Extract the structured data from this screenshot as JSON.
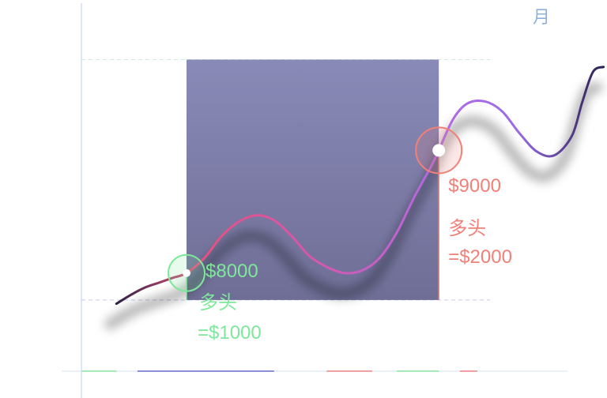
{
  "period_label": "月",
  "chart_data": {
    "type": "line",
    "title": "",
    "xlabel": "",
    "ylabel": "",
    "grid": false,
    "legend": "none",
    "series": [
      {
        "points": [
          {
            "x": 0.0,
            "y": 7750
          },
          {
            "x": 0.4,
            "y": 7820
          },
          {
            "x": 0.8,
            "y": 7880
          },
          {
            "x": 1.2,
            "y": 7920
          },
          {
            "x": 1.6,
            "y": 7960
          },
          {
            "x": 2.0,
            "y": 8000
          },
          {
            "x": 2.5,
            "y": 8120
          },
          {
            "x": 3.0,
            "y": 8300
          },
          {
            "x": 3.5,
            "y": 8420
          },
          {
            "x": 4.0,
            "y": 8470
          },
          {
            "x": 4.5,
            "y": 8430
          },
          {
            "x": 5.0,
            "y": 8300
          },
          {
            "x": 5.5,
            "y": 8140
          },
          {
            "x": 6.0,
            "y": 8050
          },
          {
            "x": 6.5,
            "y": 8000
          },
          {
            "x": 7.0,
            "y": 8020
          },
          {
            "x": 7.5,
            "y": 8120
          },
          {
            "x": 8.0,
            "y": 8330
          },
          {
            "x": 8.5,
            "y": 8620
          },
          {
            "x": 9.0,
            "y": 8880
          },
          {
            "x": 9.2,
            "y": 9000
          },
          {
            "x": 9.6,
            "y": 9250
          },
          {
            "x": 10.0,
            "y": 9380
          },
          {
            "x": 10.5,
            "y": 9400
          },
          {
            "x": 11.0,
            "y": 9320
          },
          {
            "x": 11.5,
            "y": 9140
          },
          {
            "x": 12.0,
            "y": 8990
          },
          {
            "x": 12.5,
            "y": 8960
          },
          {
            "x": 13.0,
            "y": 9120
          },
          {
            "x": 13.3,
            "y": 9400
          },
          {
            "x": 13.6,
            "y": 9640
          },
          {
            "x": 13.9,
            "y": 9680
          }
        ],
        "gradient_colors": [
          "#2a2042",
          "#e8507a",
          "#d15ab5",
          "#b06ae6",
          "#9b6be8",
          "#2a2050"
        ]
      }
    ],
    "xlim": [
      -1.0,
      14.0
    ],
    "ylim": [
      7200,
      10200
    ],
    "shaded_region": {
      "x_start": 2.0,
      "x_end": 9.2,
      "y_low": 7780,
      "y_high": 9740,
      "color_top": "#8a8ab8",
      "color_bottom": "#6e6e96"
    },
    "markers": [
      {
        "x": 2.0,
        "y": 8000,
        "price_label": "$8000",
        "type_label": "多头",
        "amount_label": "=$1000",
        "color": "#7ee89a"
      },
      {
        "x": 9.2,
        "y": 9000,
        "price_label": "$9000",
        "type_label": "多头",
        "amount_label": "=$2000",
        "color": "#f08078"
      }
    ],
    "bottom_segments": [
      {
        "x_start": -1.0,
        "x_end": 0.0,
        "color": "#a6ecb8"
      },
      {
        "x_start": 0.6,
        "x_end": 4.5,
        "color": "#8890d8"
      },
      {
        "x_start": 6.0,
        "x_end": 7.3,
        "color": "#f0a0a0"
      },
      {
        "x_start": 8.0,
        "x_end": 9.2,
        "color": "#a6ecb8"
      },
      {
        "x_start": 9.8,
        "x_end": 10.3,
        "color": "#f0a0a0"
      }
    ]
  }
}
